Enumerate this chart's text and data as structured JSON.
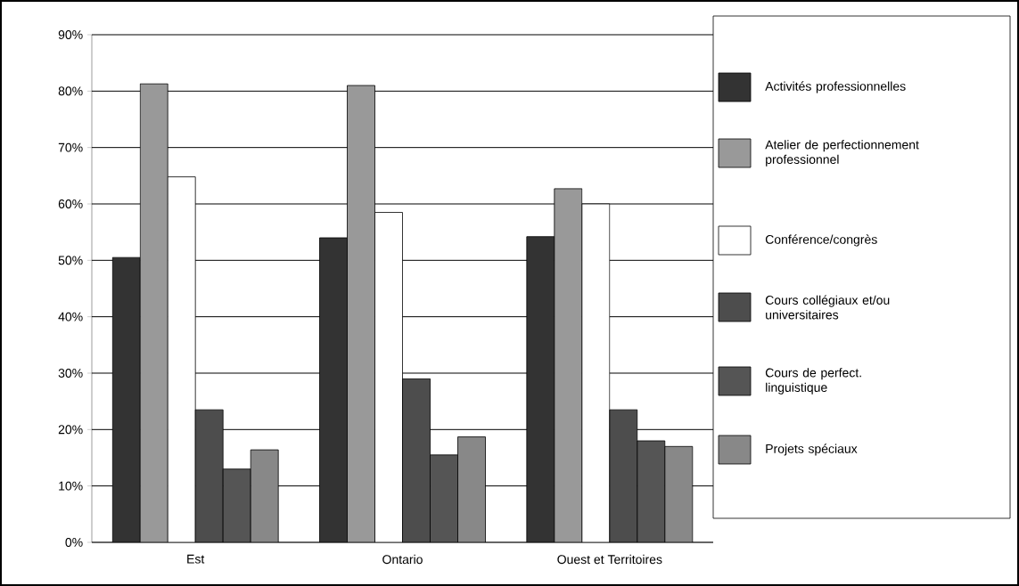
{
  "chart_data": {
    "type": "bar",
    "categories": [
      "Est",
      "Ontario",
      "Ouest et Territoires"
    ],
    "series": [
      {
        "name": "Activités professionnelles",
        "color": "#333333",
        "values": [
          50.5,
          54,
          54.2
        ]
      },
      {
        "name": "Atelier de perfectionnement professionnel",
        "color": "#999999",
        "values": [
          81.3,
          81,
          62.7
        ]
      },
      {
        "name": "Conférence/congrès",
        "color": "#ffffff",
        "values": [
          64.8,
          58.5,
          60
        ]
      },
      {
        "name": "Cours collégiaux et/ou universitaires",
        "color": "#4d4d4d",
        "values": [
          23.5,
          29,
          23.5
        ]
      },
      {
        "name": "Cours de perfect. linguistique",
        "color": "#555555",
        "values": [
          13,
          15.5,
          18
        ]
      },
      {
        "name": "Projets spéciaux",
        "color": "#888888",
        "values": [
          16.4,
          18.7,
          17
        ]
      }
    ],
    "ylim": [
      0,
      90
    ],
    "yticks": [
      {
        "value": 0,
        "label": "0%"
      },
      {
        "value": 10,
        "label": "10%"
      },
      {
        "value": 20,
        "label": "20%"
      },
      {
        "value": 30,
        "label": "30%"
      },
      {
        "value": 40,
        "label": "40%"
      },
      {
        "value": 50,
        "label": "50%"
      },
      {
        "value": 60,
        "label": "60%"
      },
      {
        "value": 70,
        "label": "70%"
      },
      {
        "value": 80,
        "label": "80%"
      },
      {
        "value": 90,
        "label": "90%"
      }
    ],
    "grid": "y",
    "legend": "right"
  }
}
